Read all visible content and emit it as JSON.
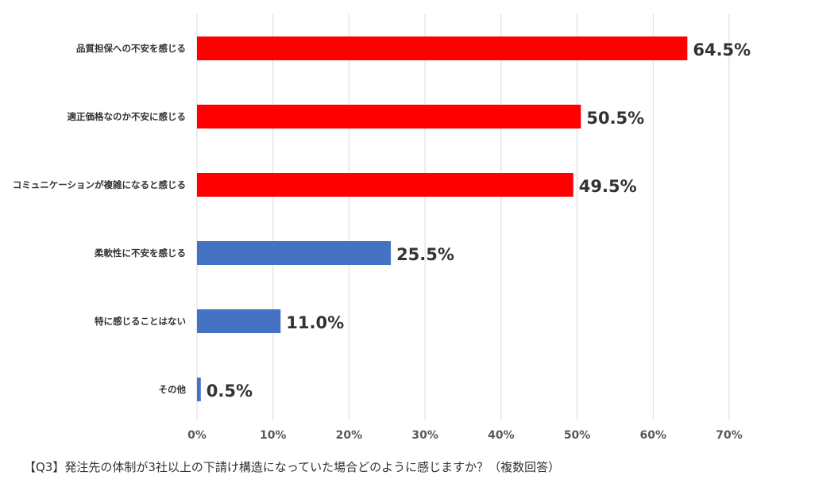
{
  "chart_data": {
    "type": "bar",
    "orientation": "horizontal",
    "categories": [
      "品質担保への不安を感じる",
      "適正価格なのか不安に感じる",
      "コミュニケーションが複雑になると感じる",
      "柔軟性に不安を感じる",
      "特に感じることはない",
      "その他"
    ],
    "values": [
      64.5,
      50.5,
      49.5,
      25.5,
      11.0,
      0.5
    ],
    "value_labels": [
      "64.5%",
      "50.5%",
      "49.5%",
      "25.5%",
      "11.0%",
      "0.5%"
    ],
    "xlim": [
      0,
      70
    ],
    "xticks": [
      0,
      10,
      20,
      30,
      40,
      50,
      60,
      70
    ],
    "xtick_labels": [
      "0%",
      "10%",
      "20%",
      "30%",
      "40%",
      "50%",
      "60%",
      "70%"
    ],
    "grid": true,
    "legend": "none",
    "bar_colors": [
      "#ff0000",
      "#ff0000",
      "#ff0000",
      "#4472c4",
      "#4472c4",
      "#4472c4"
    ],
    "colors": {
      "highlight": "#ff0000",
      "normal": "#4472c4",
      "grid": "#d9d9d9",
      "label_text": "#333333",
      "tick_text": "#595959"
    }
  },
  "caption": "【Q3】発注先の体制が3社以上の下請け構造になっていた場合どのように感じますか？（複数回答）"
}
